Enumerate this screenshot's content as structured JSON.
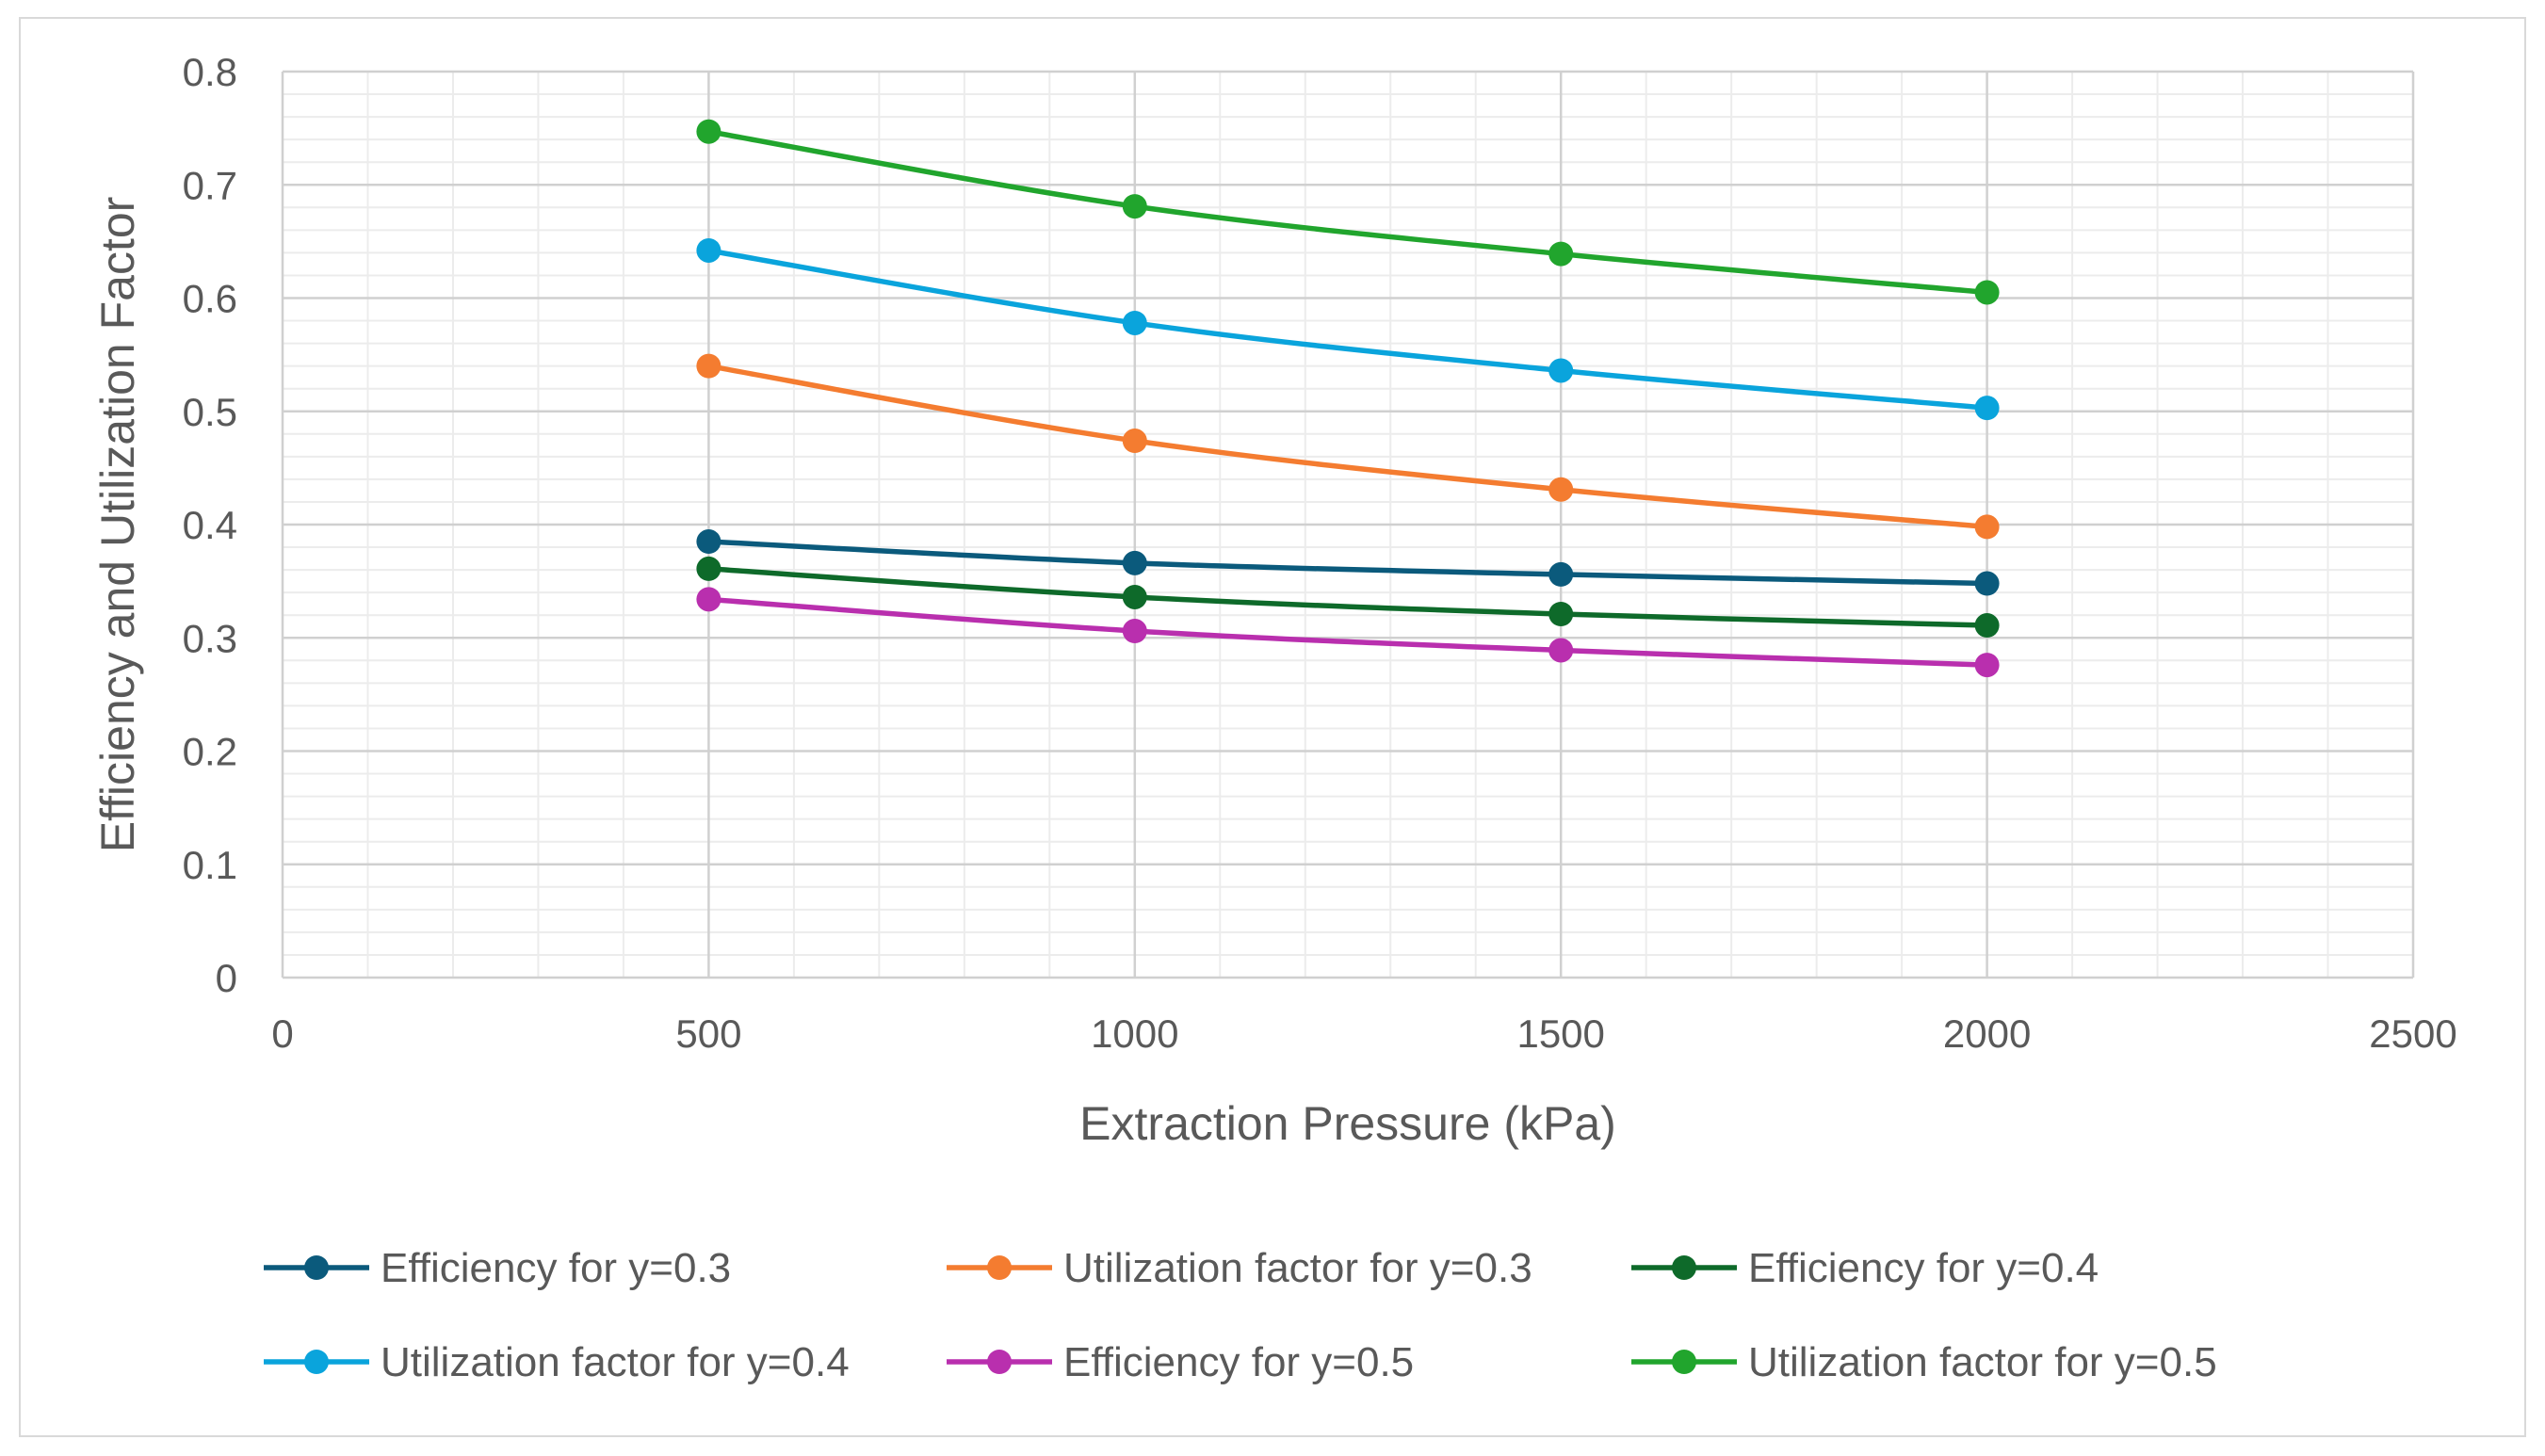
{
  "chart_data": {
    "type": "line",
    "title": "",
    "xlabel": "Extraction Pressure (kPa)",
    "ylabel": "Efficiency and Utilization Factor",
    "xlim": [
      0,
      2500
    ],
    "ylim": [
      0,
      0.8
    ],
    "x_ticks": [
      "0",
      "500",
      "1000",
      "1500",
      "2000",
      "2500"
    ],
    "y_ticks": [
      "0",
      "0.1",
      "0.2",
      "0.3",
      "0.4",
      "0.5",
      "0.6",
      "0.7",
      "0.8"
    ],
    "grid": true,
    "legend_position": "bottom",
    "x": [
      500,
      1000,
      1500,
      2000
    ],
    "series": [
      {
        "name": "Efficiency for y=0.3",
        "color": "#0b5a7c",
        "values": [
          0.385,
          0.366,
          0.356,
          0.348
        ]
      },
      {
        "name": "Utilization factor for y=0.3",
        "color": "#f47c30",
        "values": [
          0.54,
          0.474,
          0.431,
          0.398
        ]
      },
      {
        "name": "Efficiency for y=0.4",
        "color": "#0e6a2a",
        "values": [
          0.361,
          0.336,
          0.321,
          0.311
        ]
      },
      {
        "name": "Utilization factor for y=0.4",
        "color": "#0aa4dc",
        "values": [
          0.642,
          0.578,
          0.536,
          0.503
        ]
      },
      {
        "name": "Efficiency for y=0.5",
        "color": "#b92fae",
        "values": [
          0.334,
          0.306,
          0.289,
          0.276
        ]
      },
      {
        "name": "Utilization factor for y=0.5",
        "color": "#21a52d",
        "values": [
          0.747,
          0.681,
          0.639,
          0.605
        ]
      }
    ]
  }
}
